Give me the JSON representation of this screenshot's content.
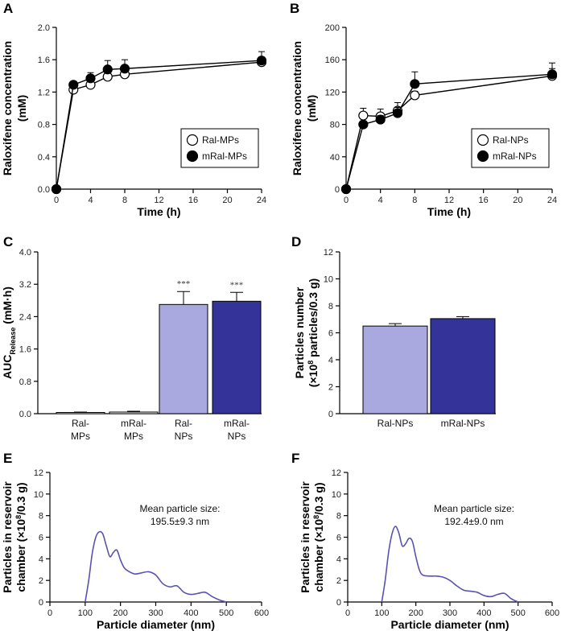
{
  "colors": {
    "ral_bar": "#a9a9e0",
    "mral_bar": "#33339a",
    "size_curve": "#5a52b0",
    "axis": "#000000"
  },
  "chart_data": [
    {
      "panel": "A",
      "type": "line",
      "xlabel": "Time (h)",
      "ylabel": "Raloxifene concentration",
      "ylabel_unit": "(mM)",
      "xlim": [
        0,
        24
      ],
      "ylim": [
        0,
        2.0
      ],
      "xticks": [
        0,
        4,
        8,
        12,
        16,
        20,
        24
      ],
      "yticks": [
        "0.0",
        "0.4",
        "0.8",
        "1.2",
        "1.6",
        "2.0"
      ],
      "legend": "middle-right",
      "series": [
        {
          "name": "Ral-MPs",
          "marker": "open-circle",
          "x": [
            0,
            2,
            4,
            6,
            8,
            24
          ],
          "y": [
            0,
            1.23,
            1.29,
            1.39,
            1.42,
            1.57
          ],
          "err": [
            0,
            0.03,
            0.05,
            0.06,
            0.05,
            0.04
          ]
        },
        {
          "name": "mRal-MPs",
          "marker": "filled-circle",
          "x": [
            0,
            2,
            4,
            6,
            8,
            24
          ],
          "y": [
            0,
            1.29,
            1.37,
            1.48,
            1.49,
            1.59
          ],
          "err": [
            0,
            0.04,
            0.07,
            0.11,
            0.11,
            0.11
          ]
        }
      ]
    },
    {
      "panel": "B",
      "type": "line",
      "xlabel": "Time (h)",
      "ylabel": "Raloxifene concentration",
      "ylabel_unit": "(mM)",
      "xlim": [
        0,
        24
      ],
      "ylim": [
        0,
        200
      ],
      "xticks": [
        0,
        4,
        8,
        12,
        16,
        20,
        24
      ],
      "yticks": [
        "0",
        "40",
        "80",
        "120",
        "160",
        "200"
      ],
      "legend": "middle-right",
      "series": [
        {
          "name": "Ral-NPs",
          "marker": "open-circle",
          "x": [
            0,
            2,
            4,
            6,
            8,
            24
          ],
          "y": [
            0,
            91,
            90,
            97,
            116,
            140
          ],
          "err": [
            0,
            9,
            9,
            10,
            5,
            9
          ]
        },
        {
          "name": "mRal-NPs",
          "marker": "filled-circle",
          "x": [
            0,
            2,
            4,
            6,
            8,
            24
          ],
          "y": [
            0,
            80,
            86,
            94,
            130,
            142
          ],
          "err": [
            0,
            4,
            5,
            7,
            15,
            14
          ]
        }
      ]
    },
    {
      "panel": "C",
      "type": "bar",
      "ylabel": "AUC",
      "ylabel_sub": "Release",
      "ylabel_unit": "(mM·h)",
      "ylim": [
        0,
        4.0
      ],
      "yticks": [
        "0.0",
        "0.8",
        "1.6",
        "2.4",
        "3.2",
        "4.0"
      ],
      "categories": [
        [
          "Ral-",
          "MPs"
        ],
        [
          "mRal-",
          "MPs"
        ],
        [
          "Ral-",
          "NPs"
        ],
        [
          "mRal-",
          "NPs"
        ]
      ],
      "values": [
        0.03,
        0.04,
        2.7,
        2.78
      ],
      "err": [
        0.01,
        0.02,
        0.32,
        0.22
      ],
      "annotations": [
        "",
        "",
        "***",
        "***"
      ]
    },
    {
      "panel": "D",
      "type": "bar",
      "ylabel": "Particles number",
      "ylabel_unit_pre": "(×10",
      "ylabel_unit_sup": "8",
      "ylabel_unit_post": " particles/0.3 g)",
      "ylim": [
        0,
        12
      ],
      "yticks": [
        "0",
        "2",
        "4",
        "6",
        "8",
        "10",
        "12"
      ],
      "categories": [
        "Ral-NPs",
        "mRal-NPs"
      ],
      "values": [
        6.5,
        7.05
      ],
      "err": [
        0.18,
        0.15
      ]
    },
    {
      "panel": "E",
      "type": "line",
      "xlabel": "Particle diameter (nm)",
      "ylabel": "Particles in reservoir",
      "ylabel2_pre": "chamber (×10",
      "ylabel2_sup": "8",
      "ylabel2_post": "/0.3 g)",
      "xlim": [
        0,
        600
      ],
      "ylim": [
        0,
        12
      ],
      "xticks": [
        0,
        100,
        200,
        300,
        400,
        500,
        600
      ],
      "yticks": [
        "0",
        "2",
        "4",
        "6",
        "8",
        "10",
        "12"
      ],
      "annotation": [
        "Mean particle size:",
        "195.5±9.3 nm"
      ],
      "x": [
        100,
        110,
        120,
        130,
        140,
        150,
        160,
        170,
        180,
        190,
        200,
        210,
        220,
        240,
        260,
        280,
        300,
        320,
        340,
        360,
        380,
        400,
        420,
        440,
        460,
        480,
        500
      ],
      "y": [
        0,
        2.0,
        4.5,
        6.0,
        6.5,
        6.3,
        5.2,
        4.2,
        4.6,
        4.8,
        3.9,
        3.2,
        2.9,
        2.6,
        2.7,
        2.8,
        2.5,
        1.7,
        1.4,
        1.5,
        0.9,
        0.7,
        0.8,
        0.9,
        0.5,
        0.2,
        0
      ]
    },
    {
      "panel": "F",
      "type": "line",
      "xlabel": "Particle diameter (nm)",
      "ylabel": "Particles in reservoir",
      "ylabel2_pre": "chamber (×10",
      "ylabel2_sup": "8",
      "ylabel2_post": "/0.3 g)",
      "xlim": [
        0,
        600
      ],
      "ylim": [
        0,
        12
      ],
      "xticks": [
        0,
        100,
        200,
        300,
        400,
        500,
        600
      ],
      "yticks": [
        "0",
        "2",
        "4",
        "6",
        "8",
        "10",
        "12"
      ],
      "annotation": [
        "Mean particle size:",
        "192.4±9.0 nm"
      ],
      "x": [
        100,
        110,
        120,
        130,
        140,
        150,
        160,
        170,
        180,
        190,
        200,
        210,
        220,
        240,
        260,
        280,
        300,
        320,
        340,
        360,
        380,
        400,
        420,
        440,
        460,
        480,
        500
      ],
      "y": [
        0,
        2.0,
        4.6,
        6.3,
        7.0,
        6.4,
        5.2,
        5.4,
        5.9,
        5.6,
        4.2,
        3.0,
        2.5,
        2.4,
        2.4,
        2.3,
        2.0,
        1.5,
        1.1,
        1.0,
        0.9,
        0.6,
        0.5,
        0.7,
        0.8,
        0.3,
        0
      ]
    }
  ]
}
